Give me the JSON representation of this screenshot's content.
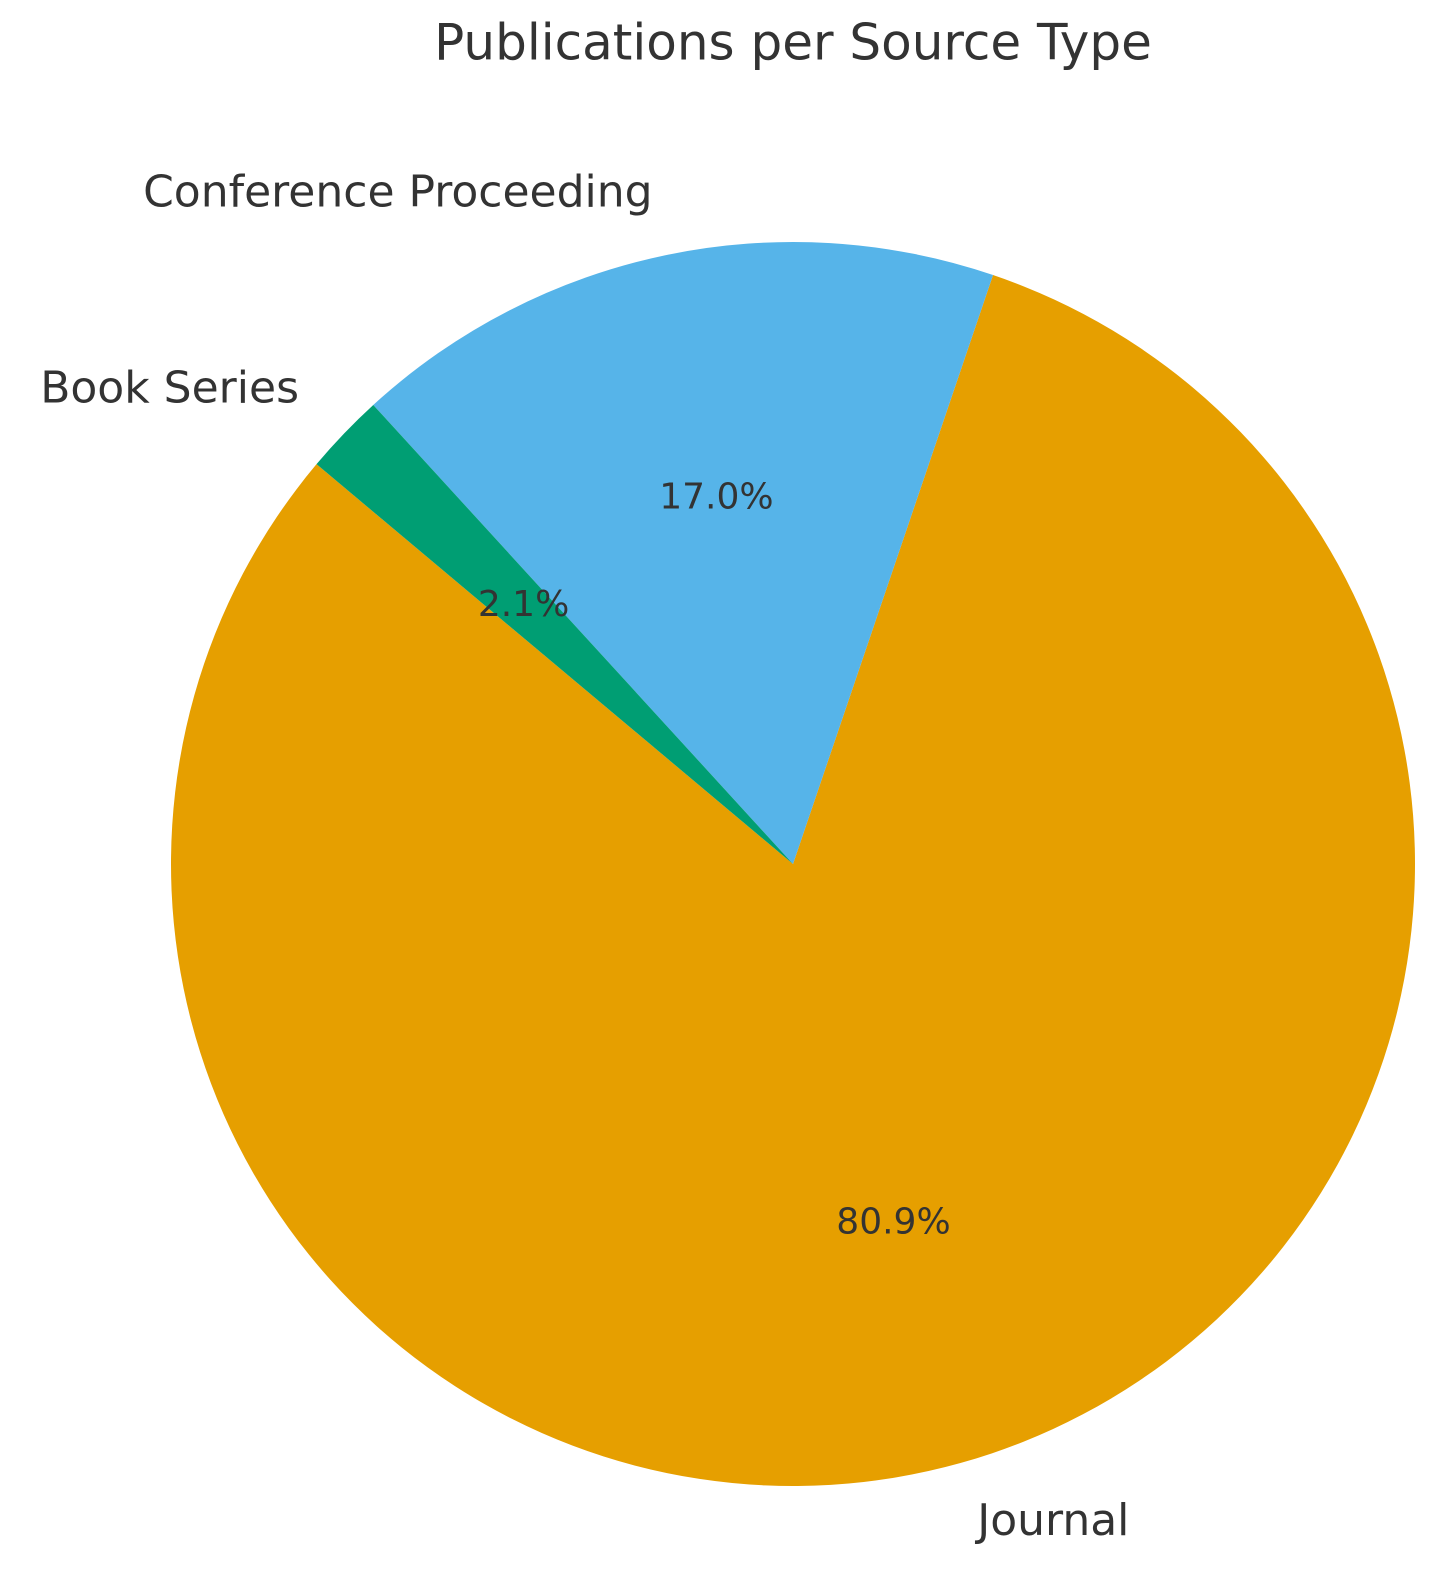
{
  "chart_data": {
    "type": "pie",
    "title": "Publications per Source Type",
    "categories": [
      "Journal",
      "Conference Proceeding",
      "Book Series"
    ],
    "values": [
      80.9,
      17.0,
      2.1
    ],
    "value_labels": [
      "80.9%",
      "17.0%",
      "2.1%"
    ],
    "colors": [
      "#e69f00",
      "#56b4e9",
      "#009e73"
    ]
  }
}
